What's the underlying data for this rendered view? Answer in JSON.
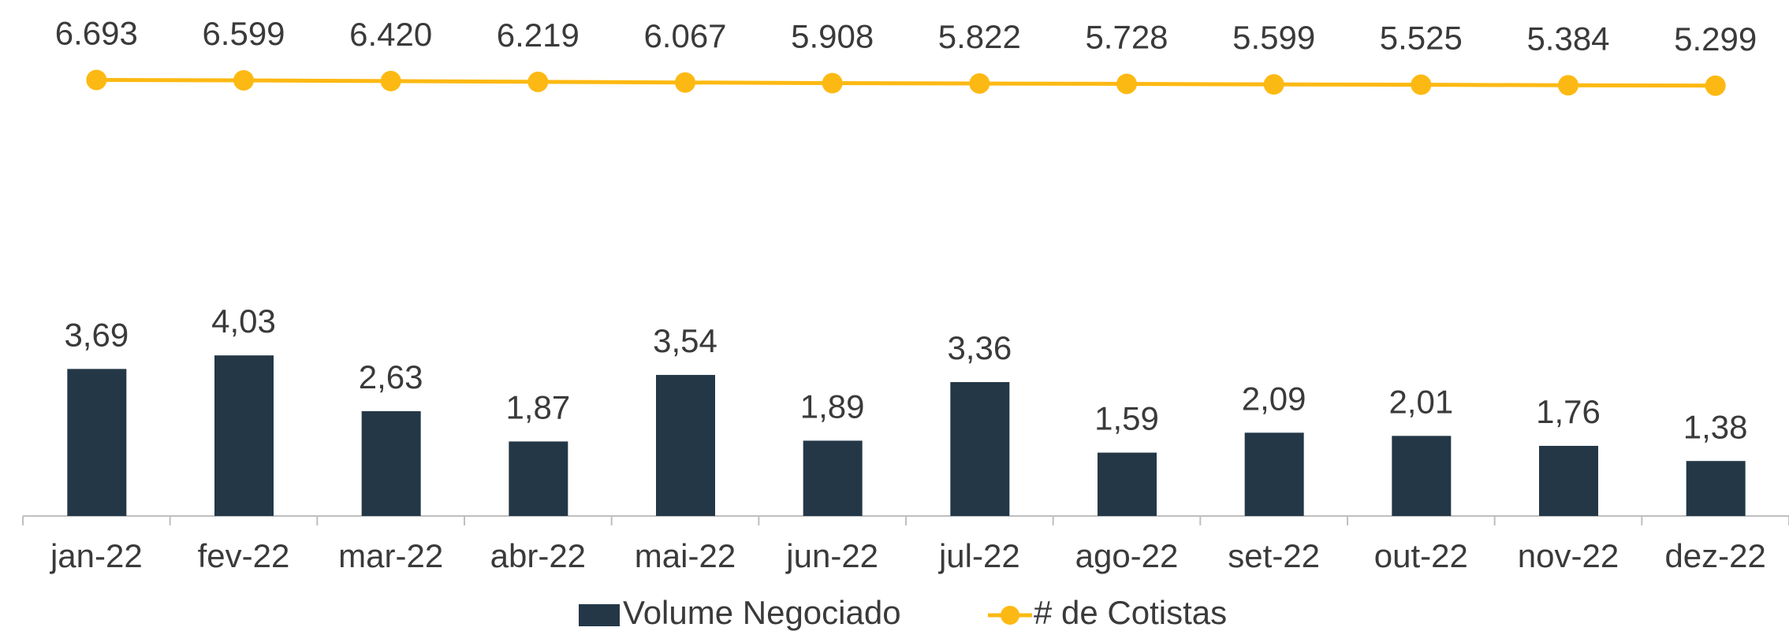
{
  "chart_data": {
    "type": "bar",
    "categories": [
      "jan-22",
      "fev-22",
      "mar-22",
      "abr-22",
      "mai-22",
      "jun-22",
      "jul-22",
      "ago-22",
      "set-22",
      "out-22",
      "nov-22",
      "dez-22"
    ],
    "series": [
      {
        "name": "Volume Negociado",
        "type": "bar",
        "color": "#243746",
        "values": [
          3.69,
          4.03,
          2.63,
          1.87,
          3.54,
          1.89,
          3.36,
          1.59,
          2.09,
          2.01,
          1.76,
          1.38
        ],
        "value_labels": [
          "3,69",
          "4,03",
          "2,63",
          "1,87",
          "3,54",
          "1,89",
          "3,36",
          "1,59",
          "2,09",
          "2,01",
          "1,76",
          "1,38"
        ]
      },
      {
        "name": "# de Cotistas",
        "type": "line",
        "axis": "y2",
        "color": "#FDB913",
        "values": [
          6693,
          6599,
          6420,
          6219,
          6067,
          5908,
          5822,
          5728,
          5599,
          5525,
          5384,
          5299
        ],
        "value_labels": [
          "6.693",
          "6.599",
          "6.420",
          "6.219",
          "6.067",
          "5.908",
          "5.822",
          "5.728",
          "5.599",
          "5.525",
          "5.384",
          "5.299"
        ]
      }
    ],
    "ylim": [
      0,
      12
    ],
    "y2lim": [
      -100000,
      17000
    ],
    "legend": "bottom"
  }
}
